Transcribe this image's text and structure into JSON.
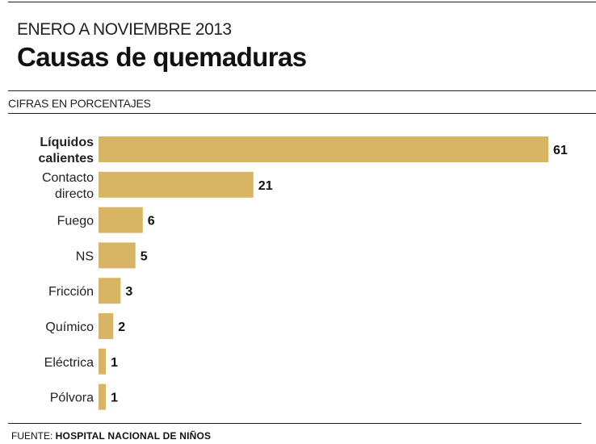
{
  "header": {
    "subtitle": "ENERO A NOVIEMBRE 2013",
    "title": "Causas de quemaduras",
    "units": "CIFRAS EN PORCENTAJES"
  },
  "footer": {
    "source_prefix": "FUENTE: ",
    "source_name": "HOSPITAL NACIONAL DE NIÑOS"
  },
  "colors": {
    "bar": "#d8b565"
  },
  "chart_data": {
    "type": "bar",
    "orientation": "horizontal",
    "title": "Causas de quemaduras",
    "subtitle": "ENERO A NOVIEMBRE 2013",
    "unit": "CIFRAS EN PORCENTAJES",
    "categories": [
      [
        "Líquidos",
        "calientes"
      ],
      [
        "Contacto",
        "directo"
      ],
      [
        "Fuego"
      ],
      [
        "NS"
      ],
      [
        "Fricción"
      ],
      [
        "Químico"
      ],
      [
        "Eléctrica"
      ],
      [
        "Pólvora"
      ]
    ],
    "highlighted": [
      true,
      false,
      false,
      false,
      false,
      false,
      false,
      false
    ],
    "values": [
      61,
      21,
      6,
      5,
      3,
      2,
      1,
      1
    ],
    "xlim": [
      0,
      61
    ]
  }
}
